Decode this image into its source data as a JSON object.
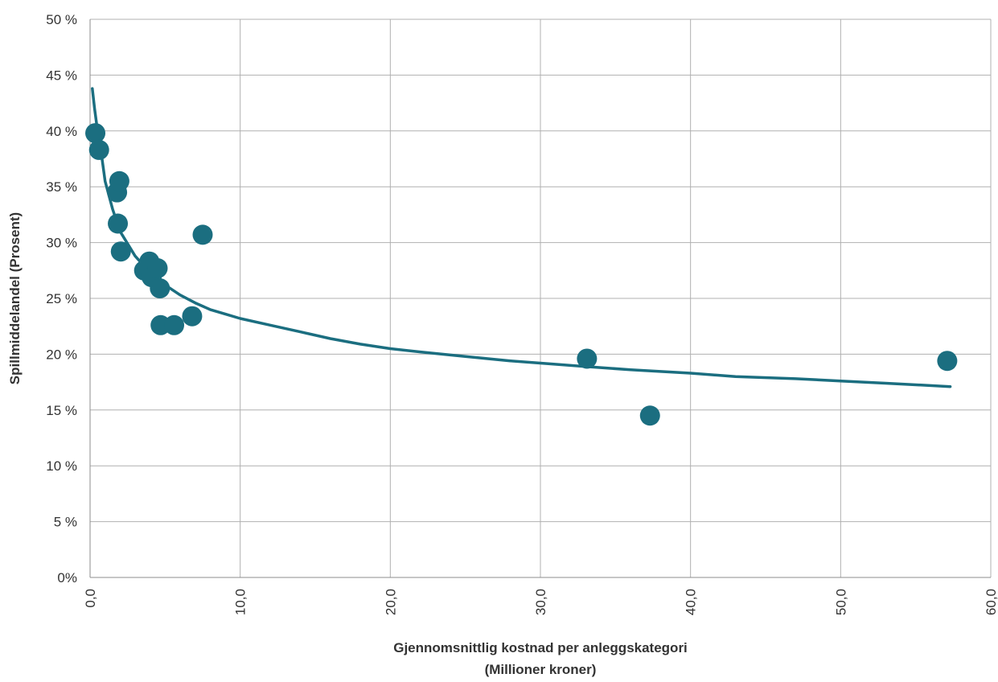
{
  "chart_data": {
    "type": "scatter",
    "title": "",
    "xlabel_lines": [
      "Gjennomsnittlig kostnad per anleggskategori",
      "(Millioner kroner)"
    ],
    "ylabel": "Spillmiddelandel (Prosent)",
    "xlim": [
      0,
      60
    ],
    "ylim": [
      0,
      50
    ],
    "x_ticks": [
      {
        "value": 0,
        "label": "0,0"
      },
      {
        "value": 10,
        "label": "10,0"
      },
      {
        "value": 20,
        "label": "20,0"
      },
      {
        "value": 30,
        "label": "30,0"
      },
      {
        "value": 40,
        "label": "40,0"
      },
      {
        "value": 50,
        "label": "50,0"
      },
      {
        "value": 60,
        "label": "60,0"
      }
    ],
    "y_ticks": [
      {
        "value": 0,
        "label": "0%"
      },
      {
        "value": 5,
        "label": "5 %"
      },
      {
        "value": 10,
        "label": "10 %"
      },
      {
        "value": 15,
        "label": "15 %"
      },
      {
        "value": 20,
        "label": "20 %"
      },
      {
        "value": 25,
        "label": "25 %"
      },
      {
        "value": 30,
        "label": "30 %"
      },
      {
        "value": 35,
        "label": "35 %"
      },
      {
        "value": 40,
        "label": "40 %"
      },
      {
        "value": 45,
        "label": "45 %"
      },
      {
        "value": 50,
        "label": "50 %"
      }
    ],
    "grid": true,
    "legend": "none",
    "colors": {
      "series": "#1b6e80",
      "grid": "#b0b0b0",
      "axis": "#8c8c8c"
    },
    "points": [
      {
        "x": 0.35,
        "y": 39.8
      },
      {
        "x": 0.6,
        "y": 38.3
      },
      {
        "x": 1.8,
        "y": 34.5
      },
      {
        "x": 1.95,
        "y": 35.5
      },
      {
        "x": 1.85,
        "y": 31.7
      },
      {
        "x": 2.05,
        "y": 29.2
      },
      {
        "x": 3.6,
        "y": 27.5
      },
      {
        "x": 3.95,
        "y": 28.3
      },
      {
        "x": 4.1,
        "y": 26.9
      },
      {
        "x": 4.5,
        "y": 27.7
      },
      {
        "x": 4.65,
        "y": 25.9
      },
      {
        "x": 4.7,
        "y": 22.6
      },
      {
        "x": 5.6,
        "y": 22.6
      },
      {
        "x": 6.8,
        "y": 23.4
      },
      {
        "x": 7.5,
        "y": 30.7
      },
      {
        "x": 33.1,
        "y": 19.6
      },
      {
        "x": 37.3,
        "y": 14.5
      },
      {
        "x": 57.1,
        "y": 19.4
      }
    ],
    "trendline": [
      {
        "x": 0.15,
        "y": 43.8
      },
      {
        "x": 0.3,
        "y": 42.0
      },
      {
        "x": 0.5,
        "y": 40.0
      },
      {
        "x": 0.8,
        "y": 37.5
      },
      {
        "x": 1.0,
        "y": 35.5
      },
      {
        "x": 1.5,
        "y": 33.0
      },
      {
        "x": 2.0,
        "y": 31.0
      },
      {
        "x": 3.0,
        "y": 28.8
      },
      {
        "x": 4.0,
        "y": 27.3
      },
      {
        "x": 5.0,
        "y": 26.2
      },
      {
        "x": 6.0,
        "y": 25.3
      },
      {
        "x": 7.0,
        "y": 24.6
      },
      {
        "x": 8.0,
        "y": 24.0
      },
      {
        "x": 9.0,
        "y": 23.6
      },
      {
        "x": 10.0,
        "y": 23.2
      },
      {
        "x": 12.0,
        "y": 22.6
      },
      {
        "x": 14.0,
        "y": 22.0
      },
      {
        "x": 16.0,
        "y": 21.4
      },
      {
        "x": 18.0,
        "y": 20.9
      },
      {
        "x": 20.0,
        "y": 20.5
      },
      {
        "x": 22.0,
        "y": 20.2
      },
      {
        "x": 25.0,
        "y": 19.8
      },
      {
        "x": 28.0,
        "y": 19.4
      },
      {
        "x": 30.0,
        "y": 19.2
      },
      {
        "x": 33.0,
        "y": 18.9
      },
      {
        "x": 36.0,
        "y": 18.6
      },
      {
        "x": 40.0,
        "y": 18.3
      },
      {
        "x": 43.0,
        "y": 18.0
      },
      {
        "x": 47.0,
        "y": 17.8
      },
      {
        "x": 50.0,
        "y": 17.6
      },
      {
        "x": 53.0,
        "y": 17.4
      },
      {
        "x": 57.3,
        "y": 17.1
      }
    ]
  }
}
